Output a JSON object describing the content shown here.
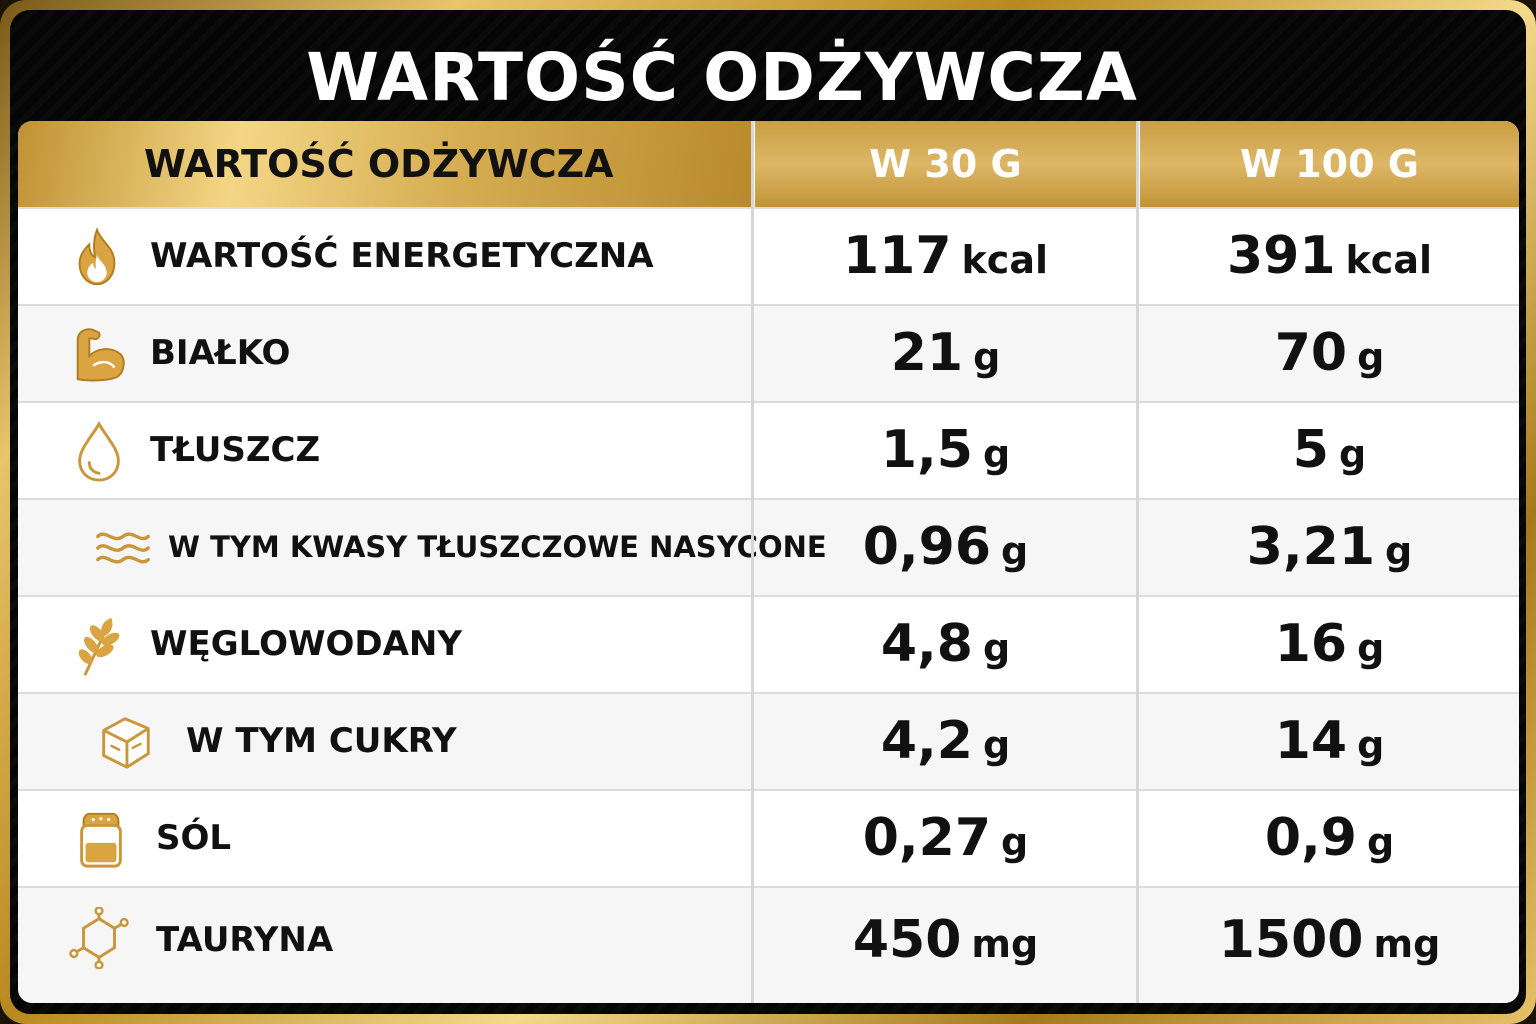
{
  "title": "WARTOŚĆ ODŻYWCZA",
  "header": {
    "name": "WARTOŚĆ ODŻYWCZA",
    "col_30": "W 30 G",
    "col_100": "W 100 G"
  },
  "colors": {
    "gold": "#c9a24a",
    "black": "#050505",
    "white": "#ffffff"
  },
  "rows": [
    {
      "icon": "flame-icon",
      "label": "WARTOŚĆ ENERGETYCZNA",
      "v30": "117",
      "u30": "kcal",
      "v100": "391",
      "u100": "kcal"
    },
    {
      "icon": "muscle-icon",
      "label": "BIAŁKO",
      "v30": "21",
      "u30": "g",
      "v100": "70",
      "u100": "g"
    },
    {
      "icon": "drop-icon",
      "label": "TŁUSZCZ",
      "v30": "1,5",
      "u30": "g",
      "v100": "5",
      "u100": "g"
    },
    {
      "icon": "waves-icon",
      "label": "W TYM KWASY TŁUSZCZOWE NASYCONE",
      "v30": "0,96",
      "u30": "g",
      "v100": "3,21",
      "u100": "g"
    },
    {
      "icon": "wheat-icon",
      "label": "WĘGLOWODANY",
      "v30": "4,8",
      "u30": "g",
      "v100": "16",
      "u100": "g"
    },
    {
      "icon": "sugar-cube-icon",
      "label": "W TYM CUKRY",
      "v30": "4,2",
      "u30": "g",
      "v100": "14",
      "u100": "g"
    },
    {
      "icon": "salt-shaker-icon",
      "label": "SÓL",
      "v30": "0,27",
      "u30": "g",
      "v100": "0,9",
      "u100": "g"
    },
    {
      "icon": "molecule-icon",
      "label": "TAURYNA",
      "v30": "450",
      "u30": "mg",
      "v100": "1500",
      "u100": "mg"
    }
  ]
}
